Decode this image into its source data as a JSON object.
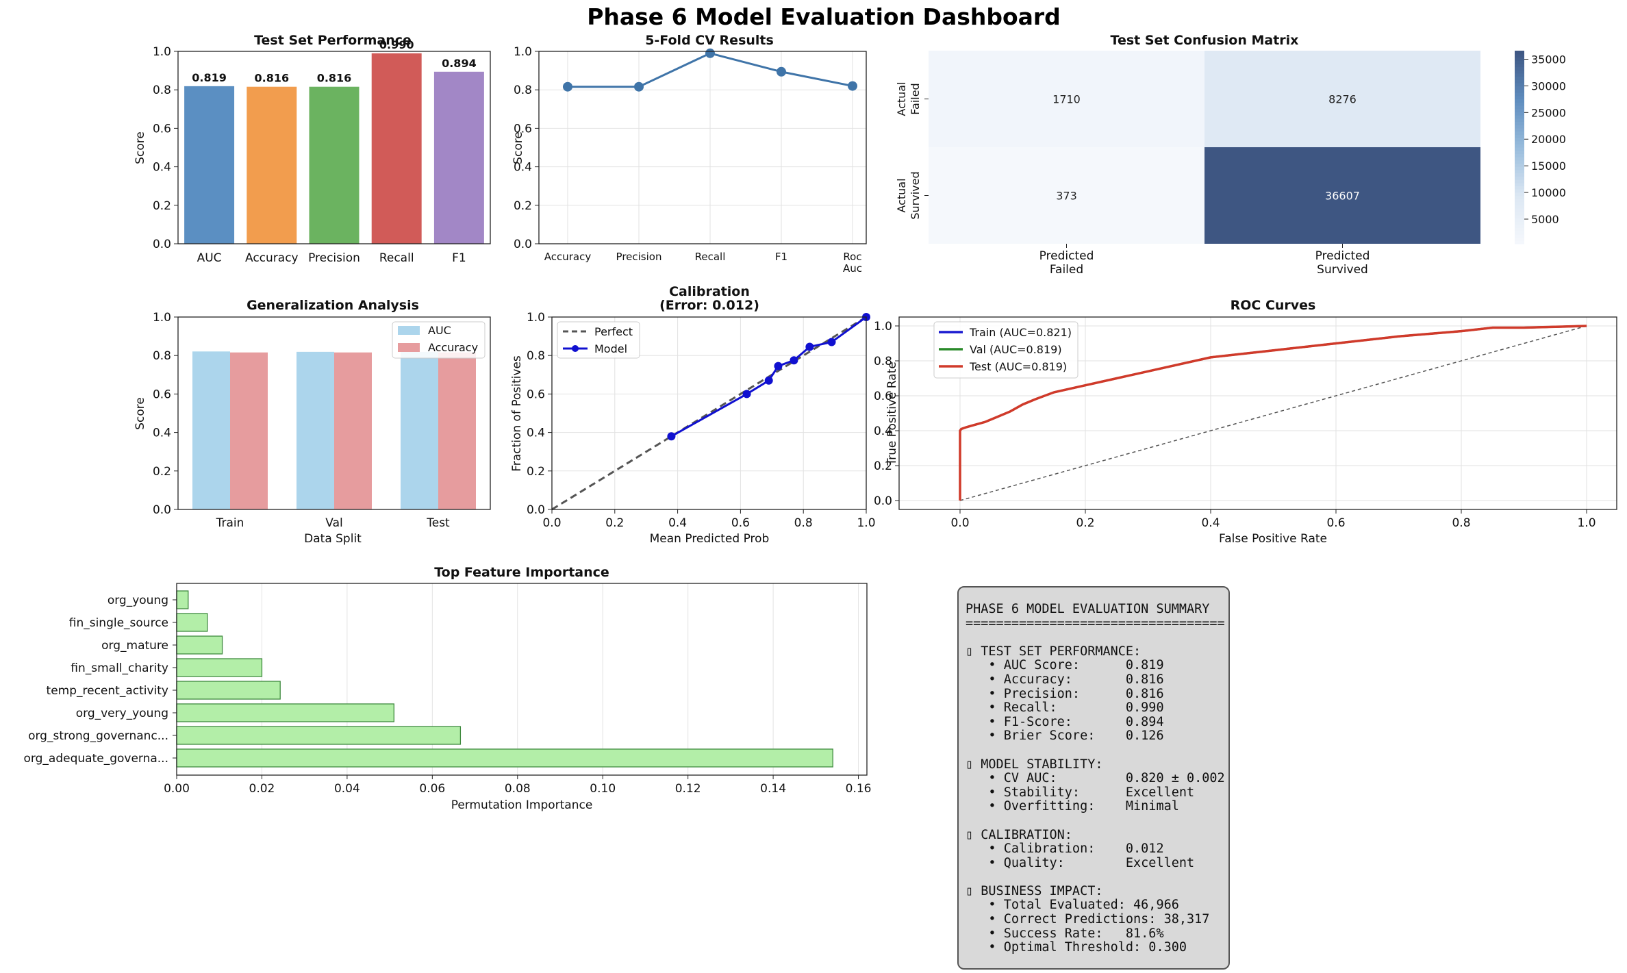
{
  "title": "Phase 6 Model Evaluation Dashboard",
  "chart_data": [
    {
      "id": "test-perf",
      "type": "bar",
      "title": "Test Set Performance",
      "ylabel": "Score",
      "ylim": [
        0,
        1.0
      ],
      "yticks": [
        "0.0",
        "0.2",
        "0.4",
        "0.6",
        "0.8",
        "1.0"
      ],
      "categories": [
        "AUC",
        "Accuracy",
        "Precision",
        "Recall",
        "F1"
      ],
      "values": [
        0.819,
        0.816,
        0.816,
        0.99,
        0.894
      ],
      "value_labels": [
        "0.819",
        "0.816",
        "0.816",
        "0.990",
        "0.894"
      ],
      "colors": [
        "#5b8fc2",
        "#f29d4e",
        "#6bb360",
        "#d15b58",
        "#a287c6"
      ]
    },
    {
      "id": "cv-results",
      "type": "line",
      "title": "5-Fold CV Results",
      "ylabel": "Score",
      "ylim": [
        0,
        1.0
      ],
      "yticks": [
        "0.0",
        "0.2",
        "0.4",
        "0.6",
        "0.8",
        "1.0"
      ],
      "categories": [
        [
          "Accuracy"
        ],
        [
          "Precision"
        ],
        [
          "Recall"
        ],
        [
          "F1"
        ],
        [
          "Roc",
          "Auc"
        ]
      ],
      "values": [
        0.816,
        0.816,
        0.99,
        0.894,
        0.82
      ],
      "grid": true,
      "color": "#3f74a8"
    },
    {
      "id": "confusion",
      "type": "heatmap",
      "title": "Test Set Confusion Matrix",
      "rows": [
        [
          "Actual",
          "Failed"
        ],
        [
          "Actual",
          "Survived"
        ]
      ],
      "cols": [
        [
          "Predicted",
          "Failed"
        ],
        [
          "Predicted",
          "Survived"
        ]
      ],
      "matrix": [
        [
          1710,
          8276
        ],
        [
          373,
          36607
        ]
      ],
      "colorbar_ticks": [
        "5000",
        "10000",
        "15000",
        "20000",
        "25000",
        "30000",
        "35000"
      ],
      "colorbar_values": [
        5000,
        10000,
        15000,
        20000,
        25000,
        30000,
        35000
      ],
      "color_range": [
        373,
        36607
      ]
    },
    {
      "id": "generalization",
      "type": "bar",
      "title": "Generalization Analysis",
      "xlabel": "Data Split",
      "ylabel": "Score",
      "ylim": [
        0,
        1.0
      ],
      "yticks": [
        "0.0",
        "0.2",
        "0.4",
        "0.6",
        "0.8",
        "1.0"
      ],
      "categories": [
        "Train",
        "Val",
        "Test"
      ],
      "series": [
        {
          "name": "AUC",
          "values": [
            0.821,
            0.819,
            0.819
          ],
          "color": "#acd5ec"
        },
        {
          "name": "Accuracy",
          "values": [
            0.816,
            0.816,
            0.816
          ],
          "color": "#e69c9e"
        }
      ],
      "legend": "top-right"
    },
    {
      "id": "calibration",
      "type": "line",
      "title": [
        "Calibration",
        "(Error: 0.012)"
      ],
      "xlabel": "Mean Predicted Prob",
      "ylabel": "Fraction of Positives",
      "xlim": [
        0,
        1.0
      ],
      "ylim": [
        0,
        1.0
      ],
      "ticks": [
        "0.0",
        "0.2",
        "0.4",
        "0.6",
        "0.8",
        "1.0"
      ],
      "grid": true,
      "legend": "top-left",
      "series": [
        {
          "name": "Perfect",
          "x": [
            0,
            1
          ],
          "y": [
            0,
            1
          ],
          "color": "#555555",
          "dash": true
        },
        {
          "name": "Model",
          "x": [
            0.38,
            0.62,
            0.69,
            0.72,
            0.77,
            0.82,
            0.89,
            1.0
          ],
          "y": [
            0.38,
            0.6,
            0.67,
            0.745,
            0.775,
            0.845,
            0.87,
            1.0
          ],
          "color": "#1010d0"
        }
      ]
    },
    {
      "id": "roc",
      "type": "line",
      "title": "ROC Curves",
      "xlabel": "False Positive Rate",
      "ylabel": "True Positive Rate",
      "xlim": [
        0,
        1.0
      ],
      "ylim": [
        0,
        1.0
      ],
      "ticks": [
        "0.0",
        "0.2",
        "0.4",
        "0.6",
        "0.8",
        "1.0"
      ],
      "grid": true,
      "legend": "top-left",
      "series": [
        {
          "name": "Train (AUC=0.821)",
          "color": "#1a1ad0"
        },
        {
          "name": "Val (AUC=0.819)",
          "color": "#2a8a2a"
        },
        {
          "name": "Test (AUC=0.819)",
          "color": "#d03a2a"
        }
      ],
      "curve": {
        "x": [
          0,
          0,
          0.002,
          0.01,
          0.02,
          0.04,
          0.06,
          0.08,
          0.1,
          0.12,
          0.15,
          0.2,
          0.25,
          0.3,
          0.35,
          0.4,
          0.5,
          0.6,
          0.7,
          0.8,
          0.85,
          0.9,
          0.95,
          1.0
        ],
        "y": [
          0,
          0.4,
          0.41,
          0.42,
          0.43,
          0.45,
          0.48,
          0.51,
          0.55,
          0.58,
          0.62,
          0.66,
          0.7,
          0.74,
          0.78,
          0.82,
          0.86,
          0.9,
          0.94,
          0.97,
          0.99,
          0.99,
          0.995,
          1.0
        ]
      },
      "diagonal": {
        "x": [
          0,
          1
        ],
        "y": [
          0,
          1
        ],
        "color": "#555555",
        "dash": true
      }
    },
    {
      "id": "feature-importance",
      "type": "bar",
      "orientation": "horizontal",
      "title": "Top Feature Importance",
      "xlabel": "Permutation Importance",
      "xlim": [
        0,
        0.162
      ],
      "xticks": [
        "0.00",
        "0.02",
        "0.04",
        "0.06",
        "0.08",
        "0.10",
        "0.12",
        "0.14",
        "0.16"
      ],
      "xtick_values": [
        0,
        0.02,
        0.04,
        0.06,
        0.08,
        0.1,
        0.12,
        0.14,
        0.16
      ],
      "categories": [
        "org_young",
        "fin_single_source",
        "org_mature",
        "fin_small_charity",
        "temp_recent_activity",
        "org_very_young",
        "org_strong_governanc...",
        "org_adequate_governa..."
      ],
      "values": [
        0.0027,
        0.0072,
        0.0107,
        0.02,
        0.0243,
        0.051,
        0.0666,
        0.154
      ],
      "color": "#b3eea8",
      "edge": "#3f8a3f",
      "grid": true
    }
  ],
  "summary": [
    "PHASE 6 MODEL EVALUATION SUMMARY",
    "==================================",
    "",
    "▯ TEST SET PERFORMANCE:",
    "   • AUC Score:      0.819",
    "   • Accuracy:       0.816",
    "   • Precision:      0.816",
    "   • Recall:         0.990",
    "   • F1-Score:       0.894",
    "   • Brier Score:    0.126",
    "",
    "▯ MODEL STABILITY:",
    "   • CV AUC:         0.820 ± 0.002",
    "   • Stability:      Excellent",
    "   • Overfitting:    Minimal",
    "",
    "▯ CALIBRATION:",
    "   • Calibration:    0.012",
    "   • Quality:        Excellent",
    "",
    "▯ BUSINESS IMPACT:",
    "   • Total Evaluated: 46,966",
    "   • Correct Predictions: 38,317",
    "   • Success Rate:   81.6%",
    "   • Optimal Threshold: 0.300"
  ]
}
